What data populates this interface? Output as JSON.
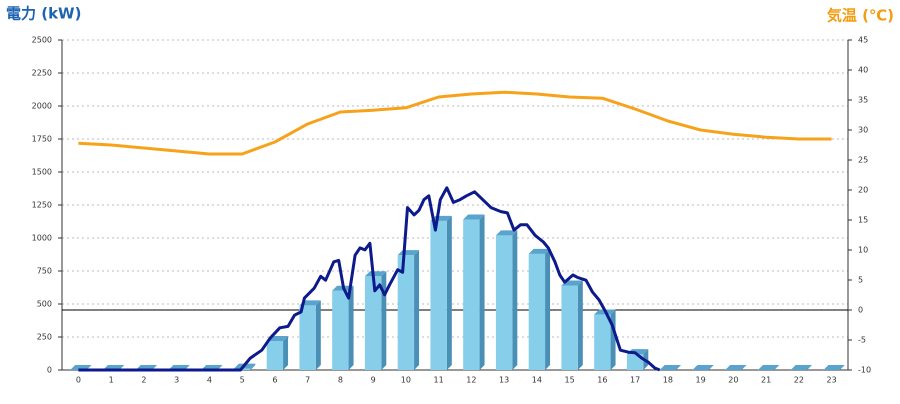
{
  "chart_data": {
    "type": "bar",
    "y_title": "電力 (kW)",
    "y2_title": "気温 (℃)",
    "categories": [
      "0",
      "1",
      "2",
      "3",
      "4",
      "5",
      "6",
      "7",
      "8",
      "9",
      "10",
      "11",
      "12",
      "13",
      "14",
      "15",
      "16",
      "17",
      "18",
      "19",
      "20",
      "21",
      "22",
      "23"
    ],
    "ylim": [
      0,
      2500
    ],
    "yticks": [
      0,
      250,
      500,
      750,
      1000,
      1250,
      1500,
      1750,
      2000,
      2250,
      2500
    ],
    "y2lim": [
      -10,
      45
    ],
    "y2ticks": [
      -10,
      -5,
      0,
      5,
      10,
      15,
      20,
      25,
      30,
      35,
      40,
      45
    ],
    "grid": true,
    "y2_refline": 0,
    "series": [
      {
        "type": "bar",
        "color": "#87ceeb",
        "values": [
          0,
          0,
          0,
          0,
          0,
          10,
          220,
          490,
          600,
          710,
          870,
          1130,
          1140,
          1020,
          880,
          640,
          420,
          120,
          0,
          0,
          0,
          0,
          0,
          0
        ]
      },
      {
        "type": "line",
        "axis": "y2",
        "color": "#f7a21b",
        "values": [
          27.8,
          27.5,
          27,
          26.5,
          26,
          26,
          28,
          31,
          33,
          33.3,
          33.7,
          35.5,
          36,
          36.3,
          36,
          35.5,
          35.3,
          33.5,
          31.5,
          30,
          29.3,
          28.8,
          28.5,
          28.5
        ]
      },
      {
        "type": "line",
        "color": "#0d1a8c",
        "x": [
          0,
          4.95,
          5.25,
          5.6,
          5.85,
          6.15,
          6.4,
          6.6,
          6.8,
          6.9,
          7.2,
          7.4,
          7.55,
          7.8,
          7.95,
          8.1,
          8.25,
          8.45,
          8.6,
          8.75,
          8.9,
          9.05,
          9.2,
          9.35,
          9.5,
          9.75,
          9.9,
          10.05,
          10.25,
          10.4,
          10.55,
          10.7,
          10.9,
          11.05,
          11.25,
          11.45,
          11.65,
          11.85,
          12.1,
          12.35,
          12.6,
          12.9,
          13.1,
          13.3,
          13.5,
          13.7,
          13.95,
          14.2,
          14.35,
          14.55,
          14.7,
          14.85,
          15.1,
          15.25,
          15.5,
          15.7,
          15.9,
          16.1,
          16.3,
          16.55,
          16.8,
          17.0,
          17.2,
          17.4,
          17.6,
          17.75
        ],
        "values": [
          0,
          0,
          90,
          150,
          240,
          320,
          330,
          415,
          440,
          545,
          620,
          710,
          680,
          820,
          830,
          620,
          545,
          870,
          925,
          910,
          960,
          600,
          645,
          570,
          645,
          760,
          740,
          1230,
          1175,
          1210,
          1290,
          1320,
          1060,
          1290,
          1380,
          1270,
          1290,
          1320,
          1350,
          1290,
          1230,
          1200,
          1190,
          1060,
          1100,
          1100,
          1020,
          970,
          925,
          820,
          720,
          665,
          720,
          700,
          680,
          590,
          530,
          440,
          340,
          150,
          135,
          130,
          90,
          60,
          15,
          0
        ]
      }
    ]
  }
}
